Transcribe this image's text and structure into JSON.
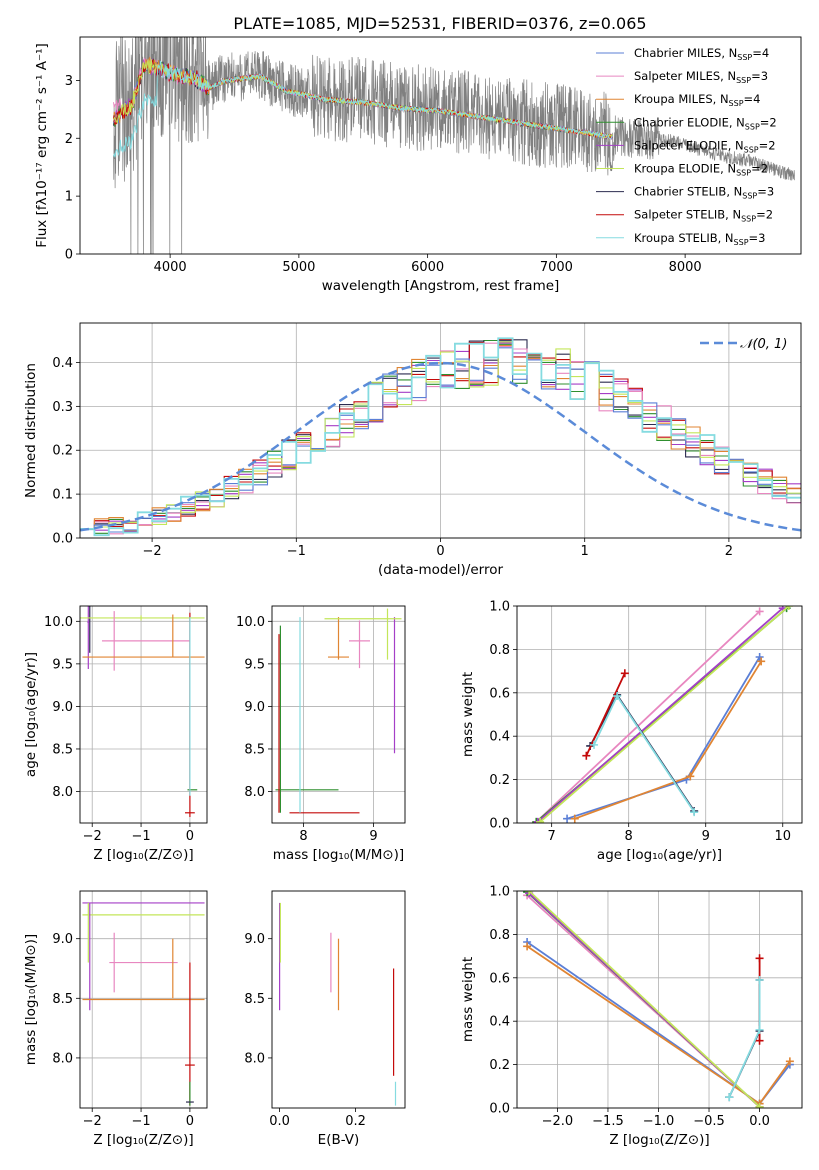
{
  "figure": {
    "title": "PLATE=1085, MJD=52531, FIBERID=0376, z=0.065"
  },
  "colors": {
    "observed": "#808080",
    "series": [
      "#5b7fd6",
      "#e887c0",
      "#e08533",
      "#2f8f2f",
      "#a53fc7",
      "#c3e65a",
      "#2b2b4f",
      "#c40a0a",
      "#85dbe0"
    ]
  },
  "chart_data": [
    {
      "id": "spectrum",
      "type": "line",
      "xlabel": "wavelength [Angstrom, rest frame]",
      "ylabel": "Flux [fλ10⁻¹⁷ erg cm⁻² s⁻¹ A⁻¹]",
      "xlim": [
        3300,
        8900
      ],
      "ylim": [
        0,
        3.75
      ],
      "xticks": [
        4000,
        5000,
        6000,
        7000,
        8000
      ],
      "yticks": [
        0,
        1,
        2,
        3
      ],
      "grid": false,
      "legend_position": "top-right",
      "observed_range": [
        3560,
        8850
      ],
      "models_range": [
        3560,
        7440
      ],
      "continuum": {
        "x": [
          3560,
          3700,
          3800,
          3900,
          4000,
          4100,
          4200,
          4300,
          4400,
          4500,
          4700,
          4900,
          5200,
          5500,
          5800,
          6100,
          6400,
          6700,
          7000,
          7300,
          7600,
          7900,
          8200,
          8500,
          8850
        ],
        "y": [
          2.35,
          2.6,
          3.3,
          3.25,
          3.15,
          3.1,
          3.05,
          2.9,
          3.0,
          3.05,
          3.1,
          2.85,
          2.7,
          2.65,
          2.55,
          2.5,
          2.4,
          2.3,
          2.2,
          2.1,
          2.0,
          1.95,
          1.75,
          1.6,
          1.35
        ]
      },
      "legend": [
        {
          "label": "Chabrier MILES, N",
          "sub": "SSP",
          "tail": "=4"
        },
        {
          "label": "Salpeter MILES, N",
          "sub": "SSP",
          "tail": "=3"
        },
        {
          "label": "Kroupa MILES, N",
          "sub": "SSP",
          "tail": "=4"
        },
        {
          "label": "Chabrier ELODIE, N",
          "sub": "SSP",
          "tail": "=2"
        },
        {
          "label": "Salpeter ELODIE, N",
          "sub": "SSP",
          "tail": "=2"
        },
        {
          "label": "Kroupa ELODIE, N",
          "sub": "SSP",
          "tail": "=2"
        },
        {
          "label": "Chabrier STELIB, N",
          "sub": "SSP",
          "tail": "=3"
        },
        {
          "label": "Salpeter STELIB, N",
          "sub": "SSP",
          "tail": "=2"
        },
        {
          "label": "Kroupa STELIB, N",
          "sub": "SSP",
          "tail": "=3"
        }
      ]
    },
    {
      "id": "residuals",
      "type": "line",
      "xlabel": "(data-model)/error",
      "ylabel": "Normed distribution",
      "xlim": [
        -2.5,
        2.5
      ],
      "ylim": [
        0,
        0.49
      ],
      "xticks": [
        -2,
        -1,
        0,
        1,
        2
      ],
      "yticks": [
        0.0,
        0.1,
        0.2,
        0.3,
        0.4
      ],
      "grid": true,
      "legend_position": "top-right",
      "curve_label": "𝒩(0, 1)",
      "bin_width": 0.1,
      "base_profile": [
        0.022,
        0.024,
        0.027,
        0.032,
        0.04,
        0.05,
        0.058,
        0.07,
        0.083,
        0.095,
        0.115,
        0.13,
        0.15,
        0.17,
        0.19,
        0.205,
        0.22,
        0.24,
        0.265,
        0.29,
        0.31,
        0.33,
        0.345,
        0.36,
        0.372,
        0.383,
        0.392,
        0.397,
        0.4,
        0.402,
        0.4,
        0.397,
        0.39,
        0.38,
        0.367,
        0.352,
        0.335,
        0.318,
        0.3,
        0.28,
        0.26,
        0.24,
        0.22,
        0.2,
        0.18,
        0.165,
        0.145,
        0.128,
        0.112,
        0.098,
        0.085
      ]
    },
    {
      "id": "age_vs_Z",
      "type": "scatter",
      "xlabel": "Z [log₁₀(Z/Z⊙)]",
      "ylabel": "age  [log₁₀(age/yr)]",
      "xlim": [
        -2.25,
        0.35
      ],
      "ylim": [
        7.63,
        10.18
      ],
      "xticks": [
        -2,
        -1,
        0
      ],
      "yticks": [
        8.0,
        8.5,
        9.0,
        9.5,
        10.0
      ],
      "grid": true,
      "bars": [
        {
          "s": 6,
          "x": -2.05,
          "y": 10.03,
          "xerr": 0.0,
          "yerr": 0.4
        },
        {
          "s": 4,
          "x": -2.08,
          "y": 9.99,
          "xerr": 0.02,
          "yerr": 0.55
        },
        {
          "s": 5,
          "x": -1.0,
          "y": 10.04,
          "xerr": 1.3,
          "yerr": 0.03
        },
        {
          "s": 1,
          "x": -0.9,
          "y": 9.77,
          "xerr": 0.9,
          "yerr": 0.0
        },
        {
          "s": 1,
          "x": -1.55,
          "y": 9.77,
          "xerr": 0.0,
          "yerr": 0.35
        },
        {
          "s": 2,
          "x": -0.95,
          "y": 9.58,
          "xerr": 1.25,
          "yerr": 0.0
        },
        {
          "s": 2,
          "x": -0.35,
          "y": 9.83,
          "xerr": 0.0,
          "yerr": 0.25
        },
        {
          "s": 3,
          "x": 0.05,
          "y": 8.02,
          "xerr": 0.1,
          "yerr": 0.0
        },
        {
          "s": 7,
          "x": 0.0,
          "y": 7.75,
          "xerr": 0.1,
          "yerr": 0.0
        },
        {
          "s": 7,
          "x": 0.0,
          "y": 8.9,
          "xerr": 0.0,
          "yerr": 1.2
        },
        {
          "s": 8,
          "x": 0.0,
          "y": 9.0,
          "xerr": 0.0,
          "yerr": 1.05
        }
      ]
    },
    {
      "id": "age_vs_mass",
      "type": "scatter",
      "xlabel": "mass [log₁₀(M/M⊙)]",
      "ylabel": "",
      "xlim": [
        7.55,
        9.45
      ],
      "ylim": [
        7.63,
        10.18
      ],
      "xticks": [
        8,
        9
      ],
      "yticks": [
        8.0,
        8.5,
        9.0,
        9.5,
        10.0
      ],
      "grid": true,
      "bars": [
        {
          "s": 4,
          "x": 9.3,
          "y": 9.25,
          "xerr": 0.0,
          "yerr": 0.8
        },
        {
          "s": 5,
          "x": 9.2,
          "y": 9.85,
          "xerr": 0.0,
          "yerr": 0.3
        },
        {
          "s": 1,
          "x": 8.8,
          "y": 9.77,
          "xerr": 0.15,
          "yerr": 0.0
        },
        {
          "s": 1,
          "x": 8.8,
          "y": 9.73,
          "xerr": 0.0,
          "yerr": 0.28
        },
        {
          "s": 2,
          "x": 8.5,
          "y": 9.58,
          "xerr": 0.15,
          "yerr": 0.0
        },
        {
          "s": 2,
          "x": 8.5,
          "y": 9.8,
          "xerr": 0.0,
          "yerr": 0.25
        },
        {
          "s": 5,
          "x": 8.85,
          "y": 10.03,
          "xerr": 0.55,
          "yerr": 0.0
        },
        {
          "s": 3,
          "x": 8.05,
          "y": 8.02,
          "xerr": 0.45,
          "yerr": 0.0
        },
        {
          "s": 7,
          "x": 8.3,
          "y": 7.75,
          "xerr": 0.5,
          "yerr": 0.0
        },
        {
          "s": 8,
          "x": 7.95,
          "y": 8.9,
          "xerr": 0.0,
          "yerr": 1.15
        },
        {
          "s": 3,
          "x": 7.67,
          "y": 8.85,
          "xerr": 0.0,
          "yerr": 1.1
        },
        {
          "s": 7,
          "x": 7.65,
          "y": 8.8,
          "xerr": 0.0,
          "yerr": 1.05
        }
      ]
    },
    {
      "id": "weight_vs_age",
      "type": "line",
      "xlabel": "age  [log₁₀(age/yr)]",
      "ylabel": "mass weight",
      "xlim": [
        6.55,
        10.25
      ],
      "ylim": [
        0,
        1
      ],
      "xticks": [
        7,
        8,
        9,
        10
      ],
      "yticks": [
        0.0,
        0.2,
        0.4,
        0.6,
        0.8,
        1.0
      ],
      "grid": true,
      "series": [
        {
          "s": 0,
          "x": [
            7.2,
            8.75,
            9.7
          ],
          "y": [
            0.02,
            0.2,
            0.765
          ]
        },
        {
          "s": 1,
          "x": [
            6.8,
            9.7
          ],
          "y": [
            0.005,
            0.975
          ]
        },
        {
          "s": 2,
          "x": [
            7.3,
            8.8,
            9.72
          ],
          "y": [
            0.02,
            0.215,
            0.745
          ]
        },
        {
          "s": 3,
          "x": [
            6.8,
            10.05
          ],
          "y": [
            0.005,
            0.99
          ]
        },
        {
          "s": 4,
          "x": [
            6.82,
            10.0
          ],
          "y": [
            0.005,
            0.99
          ]
        },
        {
          "s": 5,
          "x": [
            6.85,
            10.08
          ],
          "y": [
            0.005,
            1.0
          ]
        },
        {
          "s": 6,
          "x": [
            7.5,
            7.85,
            8.85
          ],
          "y": [
            0.355,
            0.59,
            0.055
          ]
        },
        {
          "s": 7,
          "x": [
            7.45,
            7.95
          ],
          "y": [
            0.31,
            0.69
          ]
        },
        {
          "s": 8,
          "x": [
            7.55,
            7.85,
            8.85
          ],
          "y": [
            0.36,
            0.585,
            0.05
          ]
        }
      ]
    },
    {
      "id": "mass_vs_Z",
      "type": "scatter",
      "xlabel": "Z [log₁₀(Z/Z⊙)]",
      "ylabel": "mass [log₁₀(M/M⊙)]",
      "xlim": [
        -2.25,
        0.35
      ],
      "ylim": [
        7.58,
        9.4
      ],
      "xticks": [
        -2,
        -1,
        0
      ],
      "yticks": [
        8.0,
        8.5,
        9.0
      ],
      "grid": true,
      "bars": [
        {
          "s": 4,
          "x": -0.95,
          "y": 9.3,
          "xerr": 1.25,
          "yerr": 0.0
        },
        {
          "s": 5,
          "x": -0.95,
          "y": 9.2,
          "xerr": 1.25,
          "yerr": 0.0
        },
        {
          "s": 4,
          "x": -2.05,
          "y": 8.85,
          "xerr": 0.0,
          "yerr": 0.45
        },
        {
          "s": 5,
          "x": -2.08,
          "y": 9.05,
          "xerr": 0.0,
          "yerr": 0.25
        },
        {
          "s": 1,
          "x": -0.95,
          "y": 8.8,
          "xerr": 0.7,
          "yerr": 0.0
        },
        {
          "s": 1,
          "x": -1.55,
          "y": 8.8,
          "xerr": 0.0,
          "yerr": 0.25
        },
        {
          "s": 2,
          "x": -0.95,
          "y": 8.49,
          "xerr": 1.25,
          "yerr": 0.0
        },
        {
          "s": 2,
          "x": -0.35,
          "y": 8.75,
          "xerr": 0.0,
          "yerr": 0.25
        },
        {
          "s": 7,
          "x": 0.0,
          "y": 7.94,
          "xerr": 0.1,
          "yerr": 0.0
        },
        {
          "s": 7,
          "x": 0.0,
          "y": 8.2,
          "xerr": 0.0,
          "yerr": 0.6
        },
        {
          "s": 3,
          "x": 0.0,
          "y": 7.7,
          "xerr": 0.0,
          "yerr": 0.1
        },
        {
          "s": 6,
          "x": 0.0,
          "y": 7.63,
          "xerr": 0.08,
          "yerr": 0.0
        }
      ]
    },
    {
      "id": "mass_vs_EBV",
      "type": "scatter",
      "xlabel": "E(B-V)",
      "ylabel": "",
      "xlim": [
        -0.02,
        0.33
      ],
      "ylim": [
        7.58,
        9.4
      ],
      "xticks": [
        0.0,
        0.2
      ],
      "yticks": [
        8.0,
        8.5,
        9.0
      ],
      "grid": false,
      "bars": [
        {
          "s": 4,
          "x": 0.0,
          "y": 8.85,
          "xerr": 0.0,
          "yerr": 0.45
        },
        {
          "s": 5,
          "x": 0.002,
          "y": 9.05,
          "xerr": 0.0,
          "yerr": 0.25
        },
        {
          "s": 1,
          "x": 0.135,
          "y": 8.8,
          "xerr": 0.0,
          "yerr": 0.25
        },
        {
          "s": 2,
          "x": 0.155,
          "y": 8.7,
          "xerr": 0.0,
          "yerr": 0.3
        },
        {
          "s": 7,
          "x": 0.3,
          "y": 8.3,
          "xerr": 0.0,
          "yerr": 0.45
        },
        {
          "s": 8,
          "x": 0.305,
          "y": 7.7,
          "xerr": 0.0,
          "yerr": 0.1
        }
      ]
    },
    {
      "id": "weight_vs_Z",
      "type": "line",
      "xlabel": "Z [log₁₀(Z/Z⊙)]",
      "ylabel": "mass weight",
      "xlim": [
        -2.4,
        0.42
      ],
      "ylim": [
        0,
        1
      ],
      "xticks": [
        -2.0,
        -1.5,
        -1.0,
        -0.5,
        0.0
      ],
      "yticks": [
        0.0,
        0.2,
        0.4,
        0.6,
        0.8,
        1.0
      ],
      "grid": true,
      "series": [
        {
          "s": 0,
          "x": [
            -2.3,
            0.0,
            0.3
          ],
          "y": [
            0.765,
            0.02,
            0.2
          ]
        },
        {
          "s": 1,
          "x": [
            -2.3,
            0.0
          ],
          "y": [
            0.98,
            0.005
          ]
        },
        {
          "s": 2,
          "x": [
            -2.3,
            0.0,
            0.3
          ],
          "y": [
            0.745,
            0.02,
            0.215
          ]
        },
        {
          "s": 3,
          "x": [
            -2.3,
            0.0
          ],
          "y": [
            0.995,
            0.005
          ]
        },
        {
          "s": 4,
          "x": [
            -2.28,
            0.0
          ],
          "y": [
            0.99,
            0.005
          ]
        },
        {
          "s": 5,
          "x": [
            -2.28,
            0.0
          ],
          "y": [
            1.0,
            0.005
          ]
        },
        {
          "s": 6,
          "x": [
            -0.3,
            0.0,
            0.0
          ],
          "y": [
            0.05,
            0.355,
            0.59
          ]
        },
        {
          "s": 7,
          "x": [
            0.0,
            0.0
          ],
          "y": [
            0.31,
            0.69
          ]
        },
        {
          "s": 8,
          "x": [
            -0.3,
            0.0,
            0.0
          ],
          "y": [
            0.05,
            0.36,
            0.59
          ]
        }
      ]
    }
  ]
}
